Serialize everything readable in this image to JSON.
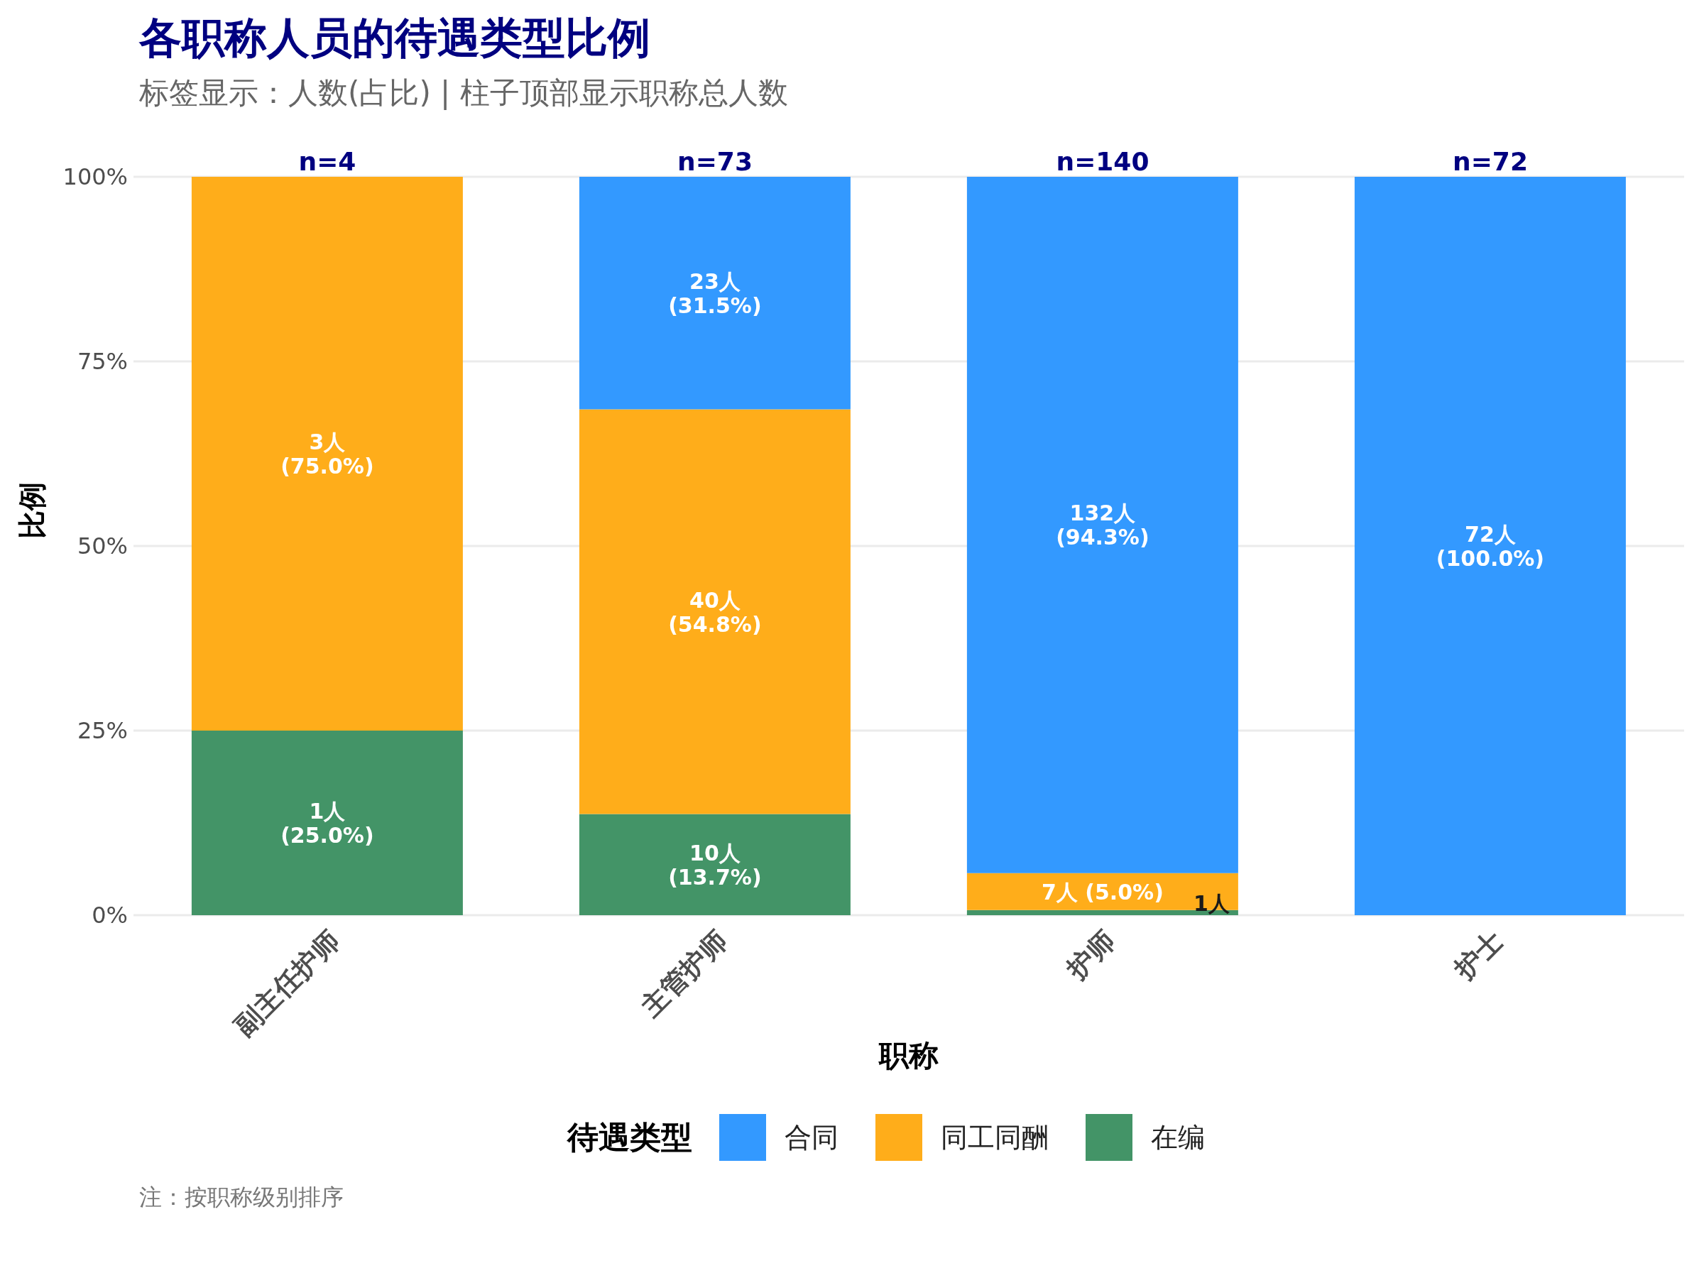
{
  "chart_data": {
    "type": "bar",
    "stacked": true,
    "title": "各职称人员的待遇类型比例",
    "subtitle": "标签显示：人数(占比) | 柱子顶部显示职称总人数",
    "xlabel": "职称",
    "ylabel": "比例",
    "legend_title": "待遇类型",
    "legend": "bottom",
    "grid": "y",
    "categories": [
      "副主任护师",
      "主管护师",
      "护师",
      "护士"
    ],
    "series": [
      {
        "name": "在编",
        "color": "#439467",
        "values": [
          25.0,
          13.7,
          0.7,
          0
        ],
        "value_labels": [
          "1人\n(25.0%)",
          "10人\n(13.7%)",
          "1人",
          null
        ]
      },
      {
        "name": "同工同酬",
        "color": "#ffad1a",
        "values": [
          75.0,
          54.8,
          5.0,
          0
        ],
        "value_labels": [
          "3人\n(75.0%)",
          "40人\n(54.8%)",
          "7人\n(5.0%)",
          null
        ]
      },
      {
        "name": "合同",
        "color": "#3399ff",
        "values": [
          0,
          31.5,
          94.3,
          100.0
        ],
        "value_labels": [
          null,
          "23人\n(31.5%)",
          "132人\n(94.3%)",
          "72人\n(100.0%)"
        ]
      }
    ],
    "ylim": [
      0,
      100
    ],
    "yticks": [
      {
        "value": 0,
        "label": "0%"
      },
      {
        "value": 25,
        "label": "25%"
      },
      {
        "value": 50,
        "label": "50%"
      },
      {
        "value": 75,
        "label": "75%"
      },
      {
        "value": 100,
        "label": "100%"
      }
    ],
    "annotations": [
      {
        "text": "n=4",
        "x": "副主任护师",
        "y": 100
      },
      {
        "text": "n=73",
        "x": "主管护师",
        "y": 100
      },
      {
        "text": "n=140",
        "x": "护师",
        "y": 100
      },
      {
        "text": "n=72",
        "x": "护士",
        "y": 100
      },
      "注：按职称级别排序"
    ]
  }
}
